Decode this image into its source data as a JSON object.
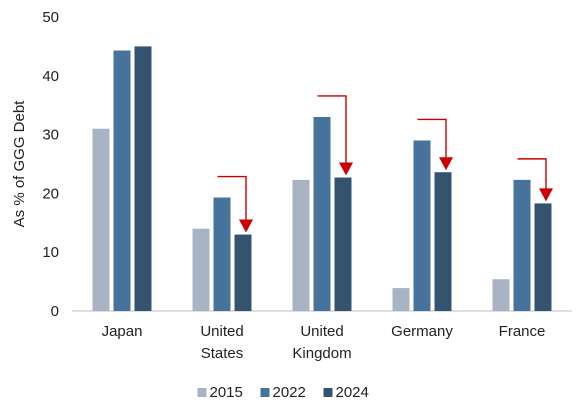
{
  "chart_data": {
    "type": "bar",
    "title": "",
    "xlabel": "",
    "ylabel": "As % of GGG Debt",
    "ylim": [
      0,
      50
    ],
    "yticks": [
      0,
      10,
      20,
      30,
      40,
      50
    ],
    "grid": false,
    "legend_position": "bottom",
    "categories": [
      [
        "Japan"
      ],
      [
        "United",
        "States"
      ],
      [
        "United",
        "Kingdom"
      ],
      [
        "Germany"
      ],
      [
        "France"
      ]
    ],
    "series": [
      {
        "name": "2015",
        "color": "#a8b3c4",
        "values": [
          31.0,
          14.0,
          22.3,
          3.9,
          5.4
        ]
      },
      {
        "name": "2022",
        "color": "#45739c",
        "values": [
          44.3,
          19.3,
          33.0,
          29.0,
          22.3
        ]
      },
      {
        "name": "2024",
        "color": "#34536f",
        "values": [
          45.0,
          13.0,
          22.7,
          23.6,
          18.3
        ]
      }
    ],
    "annotations": {
      "type": "decline-arrows",
      "color": "#cc0000",
      "from_series": "2022",
      "to_series": "2024",
      "categories": [
        1,
        2,
        3,
        4
      ]
    }
  }
}
